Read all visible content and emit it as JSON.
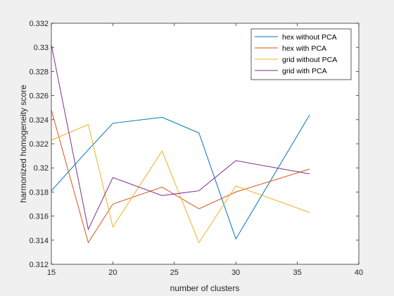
{
  "chart_data": {
    "type": "line",
    "xlabel": "number of clusters",
    "ylabel": "harmonized homogeneity score",
    "xlim": [
      15,
      40
    ],
    "ylim": [
      0.312,
      0.332
    ],
    "xticks": [
      "15",
      "20",
      "25",
      "30",
      "35",
      "40"
    ],
    "yticks": [
      "0.312",
      "0.314",
      "0.316",
      "0.318",
      "0.32",
      "0.322",
      "0.324",
      "0.326",
      "0.328",
      "0.33",
      "0.332"
    ],
    "x": [
      15,
      18,
      20,
      24,
      27,
      30,
      36
    ],
    "grid": false,
    "legend_position": "top-right",
    "series": [
      {
        "name": "hex without PCA",
        "color": "#0072BD",
        "values": [
          0.3181,
          0.3215,
          0.3237,
          0.3242,
          0.3229,
          0.3141,
          0.3244
        ]
      },
      {
        "name": "hex with PCA",
        "color": "#D95319",
        "values": [
          0.3248,
          0.3138,
          0.317,
          0.3184,
          0.3166,
          0.318,
          0.3199
        ]
      },
      {
        "name": "grid without PCA",
        "color": "#EDB120",
        "values": [
          0.3223,
          0.3236,
          0.3151,
          0.3214,
          0.3138,
          0.3185,
          0.3163
        ]
      },
      {
        "name": "grid with PCA",
        "color": "#7E2F8E",
        "values": [
          0.3302,
          0.3149,
          0.3192,
          0.3177,
          0.3181,
          0.3206,
          0.3195
        ]
      }
    ]
  }
}
